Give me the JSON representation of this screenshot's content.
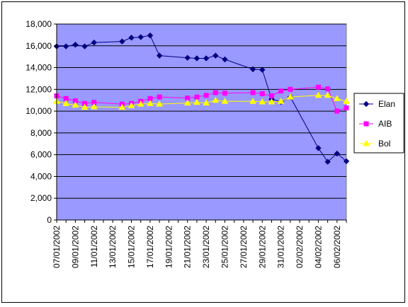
{
  "chart_data": {
    "type": "line",
    "title": "",
    "xlabel": "",
    "ylabel": "",
    "x_tick_labels": [
      "07/01/2002",
      "09/01/2002",
      "11/01/2002",
      "13/01/2002",
      "15/01/2002",
      "17/01/2002",
      "19/01/2002",
      "21/01/2002",
      "23/01/2002",
      "25/01/2002",
      "27/01/2002",
      "29/01/2002",
      "31/01/2002",
      "02/02/2002",
      "04/02/2002",
      "06/02/2002"
    ],
    "x_range": [
      "2002-01-07",
      "2002-02-07"
    ],
    "y_ticks": [
      "0",
      "2,000",
      "4,000",
      "6,000",
      "8,000",
      "10,000",
      "12,000",
      "14,000",
      "16,000",
      "18,000"
    ],
    "ylim": [
      0,
      18000
    ],
    "grid": "horizontal",
    "legend_position": "right",
    "plot_background": "#9999ff",
    "series": [
      {
        "name": "Elan",
        "color": "#000080",
        "marker": "diamond",
        "x": [
          "2002-01-07",
          "2002-01-08",
          "2002-01-09",
          "2002-01-10",
          "2002-01-11",
          "2002-01-14",
          "2002-01-15",
          "2002-01-16",
          "2002-01-17",
          "2002-01-18",
          "2002-01-21",
          "2002-01-22",
          "2002-01-23",
          "2002-01-24",
          "2002-01-25",
          "2002-01-28",
          "2002-01-29",
          "2002-01-30",
          "2002-01-31",
          "2002-02-01",
          "2002-02-04",
          "2002-02-05",
          "2002-02-06",
          "2002-02-07"
        ],
        "values": [
          15950,
          15950,
          16100,
          15950,
          16300,
          16400,
          16750,
          16800,
          16950,
          15100,
          14900,
          14850,
          14850,
          15100,
          14750,
          13850,
          13800,
          11100,
          10850,
          11300,
          6600,
          5350,
          6100,
          5400
        ]
      },
      {
        "name": "AIB",
        "color": "#ff00ff",
        "marker": "square",
        "x": [
          "2002-01-07",
          "2002-01-08",
          "2002-01-09",
          "2002-01-10",
          "2002-01-11",
          "2002-01-14",
          "2002-01-15",
          "2002-01-16",
          "2002-01-17",
          "2002-01-18",
          "2002-01-21",
          "2002-01-22",
          "2002-01-23",
          "2002-01-24",
          "2002-01-25",
          "2002-01-28",
          "2002-01-29",
          "2002-01-30",
          "2002-01-31",
          "2002-02-01",
          "2002-02-04",
          "2002-02-05",
          "2002-02-06",
          "2002-02-07"
        ],
        "values": [
          11400,
          11150,
          10950,
          10700,
          10800,
          10650,
          10700,
          10900,
          11150,
          11300,
          11200,
          11300,
          11450,
          11700,
          11650,
          11700,
          11600,
          11400,
          11850,
          12000,
          12200,
          12050,
          10000,
          10300
        ]
      },
      {
        "name": "Bol",
        "color": "#ffff00",
        "marker": "triangle",
        "x": [
          "2002-01-07",
          "2002-01-08",
          "2002-01-09",
          "2002-01-10",
          "2002-01-11",
          "2002-01-14",
          "2002-01-15",
          "2002-01-16",
          "2002-01-17",
          "2002-01-18",
          "2002-01-21",
          "2002-01-22",
          "2002-01-23",
          "2002-01-24",
          "2002-01-25",
          "2002-01-28",
          "2002-01-29",
          "2002-01-30",
          "2002-01-31",
          "2002-02-01",
          "2002-02-04",
          "2002-02-05",
          "2002-02-06",
          "2002-02-07"
        ],
        "values": [
          10900,
          10700,
          10550,
          10350,
          10400,
          10350,
          10500,
          10650,
          10700,
          10650,
          10750,
          10800,
          10750,
          11000,
          10900,
          10900,
          10850,
          10850,
          10900,
          11300,
          11450,
          11450,
          11150,
          10900
        ]
      }
    ]
  }
}
